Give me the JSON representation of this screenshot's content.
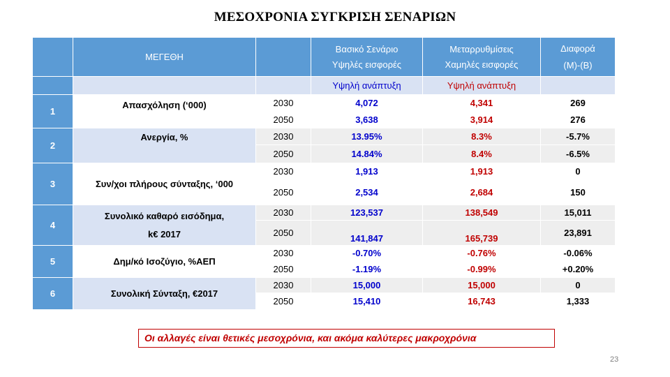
{
  "title": "ΜΕΣΟΧΡΟΝΙΑ ΣΥΓΚΡΙΣΗ ΣΕΝΑΡΙΩΝ",
  "header": {
    "col_quantities": "ΜΕΓΕΘΗ",
    "col_base_line1": "Βασικό Σενάριο",
    "col_base_line2": "Υψηλές εισφορές",
    "col_reform_line1": "Μεταρρυθμίσεις",
    "col_reform_line2": "Χαμηλές εισφορές",
    "col_diff_line1": "Διαφορά",
    "col_diff_line2": "(Μ)-(Β)",
    "sub_base": "Υψηλή ανάπτυξη",
    "sub_reform": "Υψηλή ανάπτυξη"
  },
  "rows": [
    {
      "idx": "1",
      "name": "Απασχόληση (‘000)",
      "y1": "2030",
      "b1": "4,072",
      "m1": "4,341",
      "d1": "269",
      "y2": "2050",
      "b2": "3,638",
      "m2": "3,914",
      "d2": "276"
    },
    {
      "idx": "2",
      "name": "Ανεργία, %",
      "y1": "2030",
      "b1": "13.95%",
      "m1": "8.3%",
      "d1": "-5.7%",
      "y2": "2050",
      "b2": "14.84%",
      "m2": "8.4%",
      "d2": "-6.5%"
    },
    {
      "idx": "3",
      "name": "Συν/χοι πλήρους σύνταξης, ‘000",
      "y1": "2030",
      "b1": "1,913",
      "m1": "1,913",
      "d1": "0",
      "y2": "2050",
      "b2": "2,534",
      "m2": "2,684",
      "d2": "150"
    },
    {
      "idx": "4",
      "name_line1": "Συνολικό καθαρό εισόδημα,",
      "name_line2": "k€ 2017",
      "y1": "2030",
      "b1": "123,537",
      "m1": "138,549",
      "d1": "15,011",
      "y2": "2050",
      "b2": "141,847",
      "m2": "165,739",
      "d2": "23,891"
    },
    {
      "idx": "5",
      "name": "Δημ/κό Ισοζύγιο, %ΑΕΠ",
      "y1": "2030",
      "b1": "-0.70%",
      "m1": "-0.76%",
      "d1": "-0.06%",
      "y2": "2050",
      "b2": "-1.19%",
      "m2": "-0.99%",
      "d2": "+0.20%"
    },
    {
      "idx": "6",
      "name": "Συνολική Σύνταξη, €2017",
      "y1": "2030",
      "b1": "15,000",
      "m1": "15,000",
      "d1": "0",
      "y2": "2050",
      "b2": "15,410",
      "m2": "16,743",
      "d2": "1,333"
    }
  ],
  "note": "Οι αλλαγές είναι θετικές μεσοχρόνια, και ακόμα καλύτερες μακροχρόνια",
  "page_number": "23"
}
